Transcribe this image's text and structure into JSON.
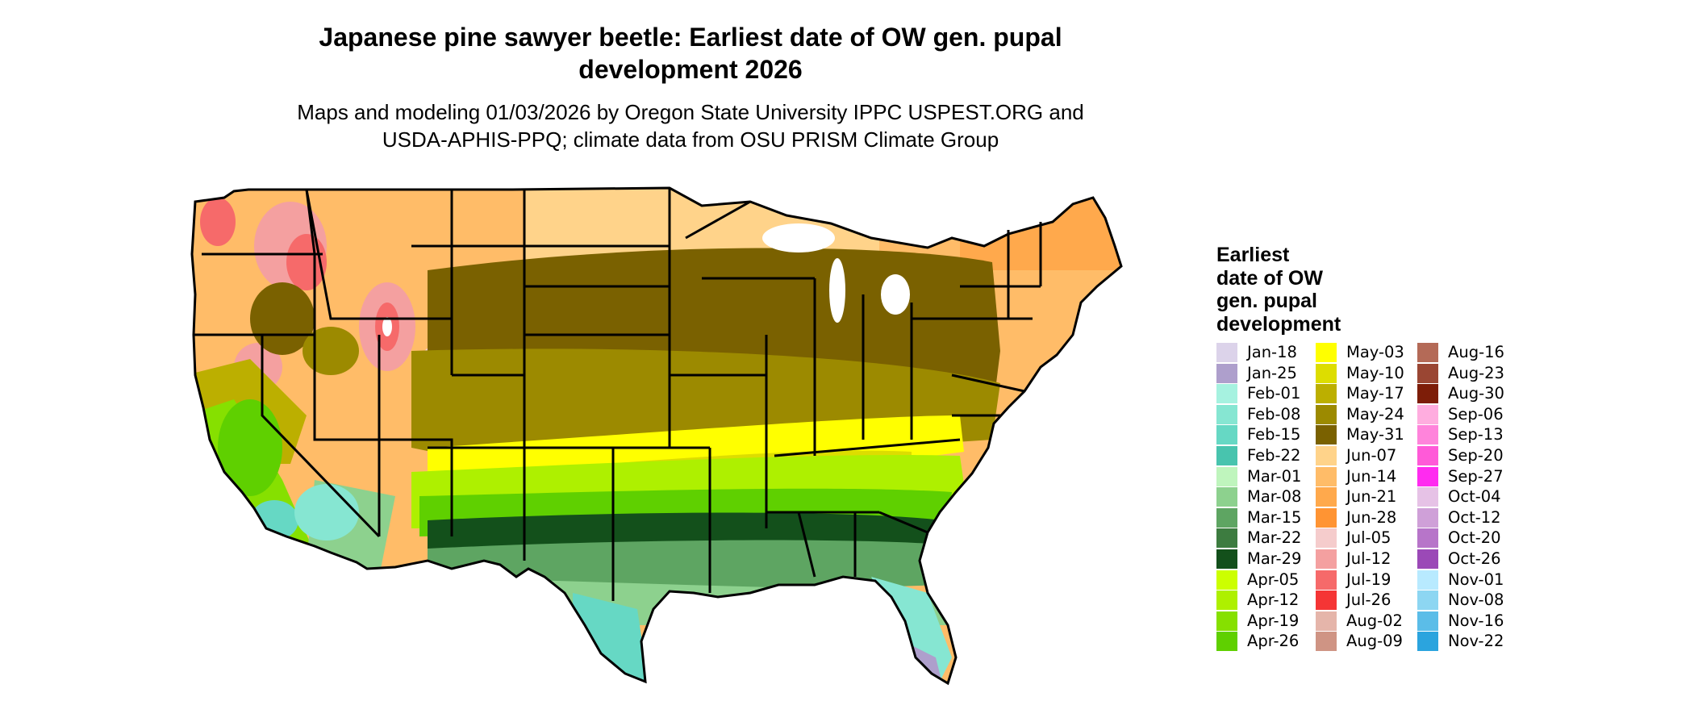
{
  "title_line1": "Japanese pine sawyer beetle: Earliest date of OW gen. pupal",
  "title_line2": "development 2026",
  "subtitle_line1": "Maps and modeling 01/03/2026 by Oregon State University IPPC USPEST.ORG and",
  "subtitle_line2": "USDA-APHIS-PPQ; climate data from OSU PRISM Climate Group",
  "legend": {
    "title_lines": [
      "Earliest",
      "date of OW",
      "gen. pupal",
      "development"
    ],
    "items": [
      {
        "label": "Jan-18",
        "color": "#dcd3ea"
      },
      {
        "label": "Jan-25",
        "color": "#ae9fcc"
      },
      {
        "label": "Feb-01",
        "color": "#a6f2e0"
      },
      {
        "label": "Feb-08",
        "color": "#86e6d2"
      },
      {
        "label": "Feb-15",
        "color": "#66d8c4"
      },
      {
        "label": "Feb-22",
        "color": "#48c4ae"
      },
      {
        "label": "Mar-01",
        "color": "#bff5bd"
      },
      {
        "label": "Mar-08",
        "color": "#8dd18e"
      },
      {
        "label": "Mar-15",
        "color": "#5ea562"
      },
      {
        "label": "Mar-22",
        "color": "#3d7c40"
      },
      {
        "label": "Mar-29",
        "color": "#13501b"
      },
      {
        "label": "Apr-05",
        "color": "#ccff00"
      },
      {
        "label": "Apr-12",
        "color": "#aef000"
      },
      {
        "label": "Apr-19",
        "color": "#86e000"
      },
      {
        "label": "Apr-26",
        "color": "#5fd000"
      },
      {
        "label": "May-03",
        "color": "#ffff00"
      },
      {
        "label": "May-10",
        "color": "#dddd00"
      },
      {
        "label": "May-17",
        "color": "#bcaf00"
      },
      {
        "label": "May-24",
        "color": "#9c8a00"
      },
      {
        "label": "May-31",
        "color": "#7a6100"
      },
      {
        "label": "Jun-07",
        "color": "#ffd38a"
      },
      {
        "label": "Jun-14",
        "color": "#ffbc68"
      },
      {
        "label": "Jun-21",
        "color": "#ffa94c"
      },
      {
        "label": "Jun-28",
        "color": "#ff9433"
      },
      {
        "label": "Jul-05",
        "color": "#f5cccc"
      },
      {
        "label": "Jul-12",
        "color": "#f4a0a0"
      },
      {
        "label": "Jul-19",
        "color": "#f66a6a"
      },
      {
        "label": "Jul-26",
        "color": "#f53535"
      },
      {
        "label": "Aug-02",
        "color": "#e5b5aa"
      },
      {
        "label": "Aug-09",
        "color": "#cf9484"
      },
      {
        "label": "Aug-16",
        "color": "#b46a57"
      },
      {
        "label": "Aug-23",
        "color": "#9a4633"
      },
      {
        "label": "Aug-30",
        "color": "#7d1d08"
      },
      {
        "label": "Sep-06",
        "color": "#ffaddf"
      },
      {
        "label": "Sep-13",
        "color": "#ff84db"
      },
      {
        "label": "Sep-20",
        "color": "#ff5ad8"
      },
      {
        "label": "Sep-27",
        "color": "#ff2bf0"
      },
      {
        "label": "Oct-04",
        "color": "#e6c2e6"
      },
      {
        "label": "Oct-12",
        "color": "#cfa0d8"
      },
      {
        "label": "Oct-20",
        "color": "#b775c9"
      },
      {
        "label": "Oct-26",
        "color": "#9b49b7"
      },
      {
        "label": "Nov-01",
        "color": "#b8eaff"
      },
      {
        "label": "Nov-08",
        "color": "#8dd6f2"
      },
      {
        "label": "Nov-16",
        "color": "#5bbde8"
      },
      {
        "label": "Nov-22",
        "color": "#2ba4de"
      }
    ]
  }
}
